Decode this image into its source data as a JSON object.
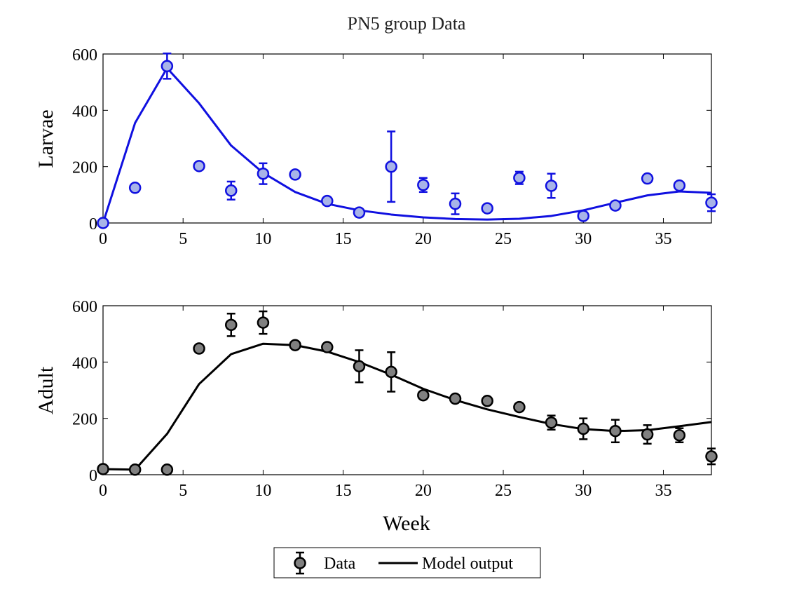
{
  "chart_data": [
    {
      "type": "line",
      "title": "PN5 group Data",
      "xlabel": "",
      "ylabel": "Larvae",
      "xlim": [
        0,
        38
      ],
      "ylim": [
        0,
        600
      ],
      "xticks": [
        0,
        5,
        10,
        15,
        20,
        25,
        30,
        35
      ],
      "yticks": [
        0,
        200,
        400,
        600
      ],
      "grid": false,
      "color": "#1010e0",
      "marker_fill": "#a8b4e8",
      "data": {
        "x": [
          0,
          2,
          4,
          6,
          8,
          10,
          12,
          14,
          16,
          18,
          20,
          22,
          24,
          26,
          28,
          30,
          32,
          34,
          36,
          38
        ],
        "y": [
          0,
          125,
          557,
          202,
          115,
          175,
          172,
          78,
          37,
          200,
          135,
          68,
          52,
          160,
          132,
          25,
          62,
          158,
          133,
          72
        ],
        "err": [
          0,
          8,
          45,
          8,
          32,
          37,
          10,
          8,
          8,
          125,
          25,
          37,
          8,
          22,
          43,
          8,
          8,
          8,
          10,
          30
        ]
      },
      "model": {
        "x": [
          0,
          2,
          4,
          6,
          8,
          10,
          12,
          14,
          16,
          18,
          20,
          22,
          24,
          26,
          28,
          30,
          32,
          34,
          36,
          38
        ],
        "y": [
          0,
          355,
          550,
          425,
          275,
          178,
          110,
          68,
          45,
          30,
          20,
          14,
          12,
          15,
          25,
          45,
          72,
          98,
          112,
          107
        ]
      }
    },
    {
      "type": "line",
      "title": "",
      "xlabel": "Week",
      "ylabel": "Adult",
      "xlim": [
        0,
        38
      ],
      "ylim": [
        0,
        600
      ],
      "xticks": [
        0,
        5,
        10,
        15,
        20,
        25,
        30,
        35
      ],
      "yticks": [
        0,
        200,
        400,
        600
      ],
      "grid": false,
      "color": "#000000",
      "marker_fill": "#808080",
      "data": {
        "x": [
          0,
          2,
          4,
          6,
          8,
          10,
          12,
          14,
          16,
          18,
          20,
          22,
          24,
          26,
          28,
          30,
          32,
          34,
          36,
          38
        ],
        "y": [
          20,
          18,
          18,
          448,
          532,
          540,
          460,
          453,
          385,
          365,
          282,
          270,
          262,
          240,
          185,
          163,
          155,
          143,
          140,
          65
        ],
        "err": [
          8,
          8,
          8,
          8,
          40,
          40,
          10,
          8,
          57,
          70,
          8,
          8,
          8,
          8,
          25,
          37,
          40,
          33,
          25,
          28
        ]
      },
      "model": {
        "x": [
          0,
          2,
          4,
          6,
          8,
          10,
          12,
          14,
          16,
          18,
          20,
          22,
          24,
          26,
          28,
          30,
          32,
          34,
          36,
          38
        ],
        "y": [
          20,
          18,
          145,
          322,
          428,
          465,
          460,
          437,
          400,
          355,
          305,
          265,
          232,
          205,
          180,
          162,
          155,
          158,
          172,
          187
        ]
      }
    }
  ],
  "legend": {
    "placement": "bottom",
    "entries": [
      {
        "label": "Data",
        "kind": "marker"
      },
      {
        "label": "Model output",
        "kind": "line"
      }
    ]
  }
}
